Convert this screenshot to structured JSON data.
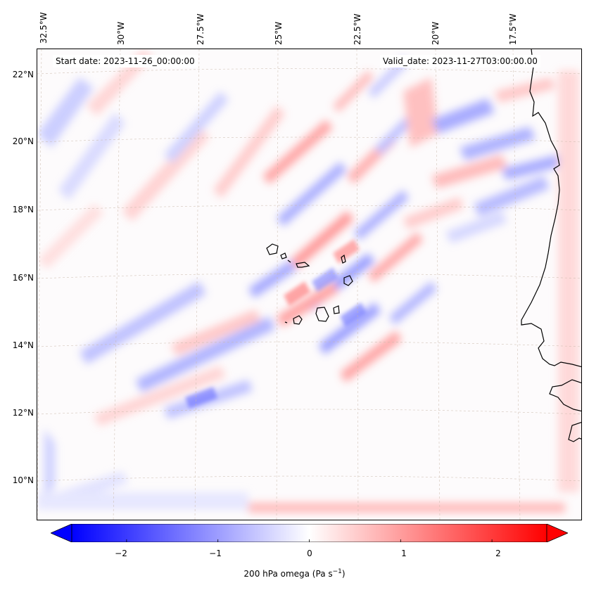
{
  "map": {
    "start_date_text": "Start date: 2023-11-26_00:00:00",
    "valid_date_text": "Valid_date: 2023-11-27T03:00:00.00",
    "longitude_labels": [
      "32.5°W",
      "30°W",
      "27.5°W",
      "25°W",
      "22.5°W",
      "20°W",
      "17.5°W"
    ],
    "latitude_labels": [
      "22°N",
      "20°N",
      "18°N",
      "16°N",
      "14°N",
      "12°N",
      "10°N"
    ],
    "field": "200 hPa omega",
    "colormap": "bwr",
    "colors": {
      "negative": "#0000ff",
      "zero": "#ffffff",
      "positive": "#ff0000",
      "coastline": "#000000"
    }
  },
  "colorbar": {
    "ticks": [
      "−2",
      "−1",
      "0",
      "1",
      "2"
    ],
    "tick_values": [
      -2,
      -1,
      0,
      1,
      2
    ],
    "range": [
      -2.6,
      2.6
    ],
    "label_main": "200 hPa omega (Pa s",
    "label_sup": "−1",
    "label_end": ")"
  }
}
